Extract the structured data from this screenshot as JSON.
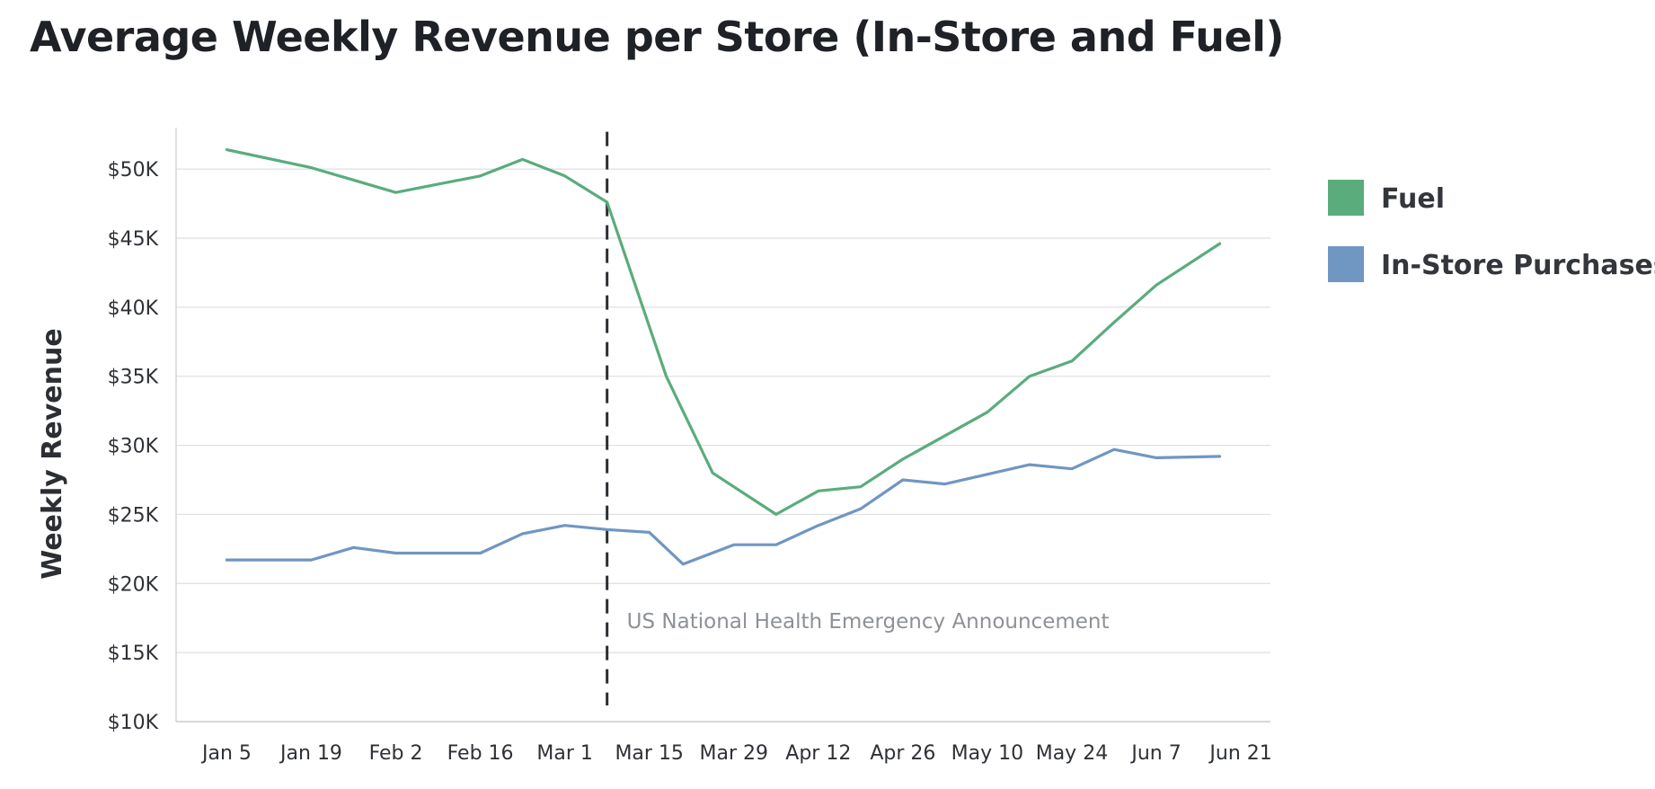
{
  "chart_data": {
    "type": "line",
    "title": "Average Weekly Revenue per Store (In-Store and Fuel)",
    "xlabel": "",
    "ylabel": "Weekly Revenue",
    "ylim": [
      10000,
      53000
    ],
    "yticks": [
      10000,
      15000,
      20000,
      25000,
      30000,
      35000,
      40000,
      45000,
      50000
    ],
    "ytick_labels": [
      "$10K",
      "$15K",
      "$20K",
      "$25K",
      "$30K",
      "$35K",
      "$40K",
      "$45K",
      "$50K"
    ],
    "xlim": [
      -0.6,
      12.35
    ],
    "xtick_labels": [
      "Jan 5",
      "Jan 19",
      "Feb 2",
      "Feb 16",
      "Mar 1",
      "Mar 15",
      "Mar 29",
      "Apr 12",
      "Apr 26",
      "May 10",
      "May 24",
      "Jun 7",
      "Jun 21"
    ],
    "grid": true,
    "legend_position": "right",
    "series": [
      {
        "name": "Fuel",
        "color": "#5aac7c",
        "x": [
          0,
          1,
          2,
          3,
          3.5,
          4,
          4.5,
          5.2,
          5.75,
          6.5,
          7,
          7.5,
          8,
          8.5,
          9,
          9.5,
          10,
          10.5,
          11,
          11.75
        ],
        "values": [
          51400,
          50100,
          48300,
          49500,
          50700,
          49500,
          47600,
          35000,
          28000,
          25000,
          26700,
          27000,
          29000,
          30700,
          32400,
          35000,
          36100,
          38900,
          41600,
          44600
        ]
      },
      {
        "name": "In-Store Purchases",
        "color": "#7096c2",
        "x": [
          0,
          1,
          1.5,
          2,
          3,
          3.5,
          4,
          4.5,
          5,
          5.4,
          6,
          6.5,
          7,
          7.5,
          8,
          8.5,
          9,
          9.5,
          10,
          10.5,
          11,
          11.75
        ],
        "values": [
          21700,
          21700,
          22600,
          22200,
          22200,
          23600,
          24200,
          23900,
          23700,
          21400,
          22800,
          22800,
          24200,
          25400,
          27500,
          27200,
          27900,
          28600,
          28300,
          29700,
          29100,
          29200
        ]
      }
    ],
    "annotations": [
      {
        "type": "vline",
        "x": 4.5,
        "label": "US National Health Emergency Announcement"
      }
    ]
  }
}
